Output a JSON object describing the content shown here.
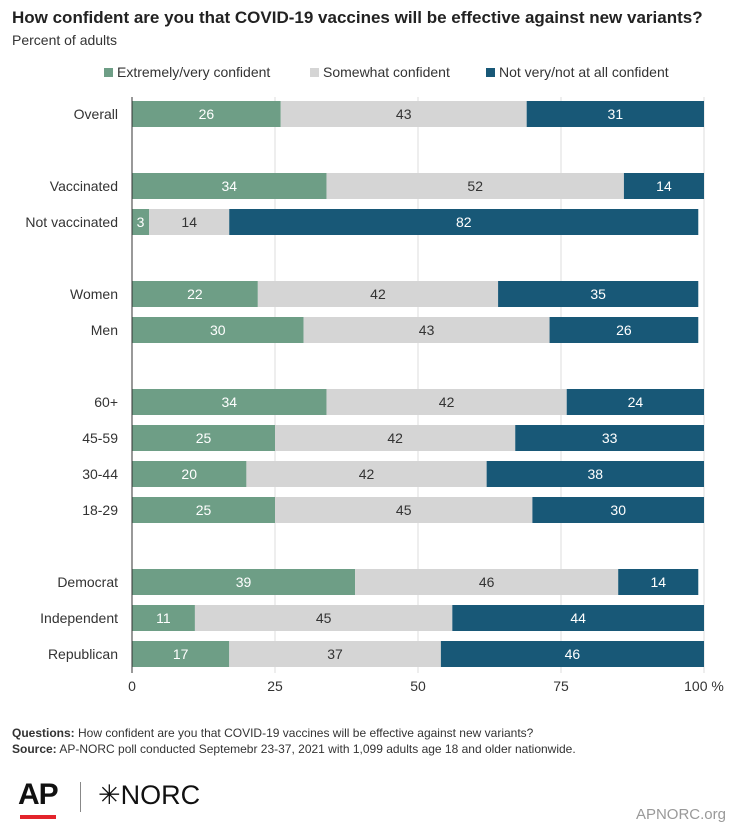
{
  "chart_data": {
    "type": "bar",
    "orientation": "horizontal",
    "stacked": true,
    "title": "How confident are you that COVID-19 vaccines will be effective against new variants?",
    "subtitle": "Percent of adults",
    "categories": [
      "Overall",
      "Vaccinated",
      "Not vaccinated",
      "Women",
      "Men",
      "60+",
      "45-59",
      "30-44",
      "18-29",
      "Democrat",
      "Independent",
      "Republican"
    ],
    "groups": [
      [
        0
      ],
      [
        1,
        2
      ],
      [
        3,
        4
      ],
      [
        5,
        6,
        7,
        8
      ],
      [
        9,
        10,
        11
      ]
    ],
    "series": [
      {
        "name": "Extremely/very confident",
        "color": "#6e9e86",
        "values": [
          26,
          34,
          3,
          22,
          30,
          34,
          25,
          20,
          25,
          39,
          11,
          17
        ]
      },
      {
        "name": "Somewhat confident",
        "color": "#d5d5d5",
        "values": [
          43,
          52,
          14,
          42,
          43,
          42,
          42,
          42,
          45,
          46,
          45,
          37
        ]
      },
      {
        "name": "Not very/not at all confident",
        "color": "#185877",
        "values": [
          31,
          14,
          82,
          35,
          26,
          24,
          33,
          38,
          30,
          14,
          44,
          46
        ]
      }
    ],
    "xlim": [
      0,
      100
    ],
    "xticks": [
      "0",
      "25",
      "50",
      "75",
      "100 %"
    ],
    "xtick_values": [
      0,
      25,
      50,
      75,
      100
    ],
    "grid": true,
    "legend_position": "top"
  },
  "footer": {
    "questions_label": "Questions:",
    "questions_text": " How confident are you that COVID-19 vaccines will be effective against new variants?",
    "source_label": "Source:",
    "source_text": " AP-NORC poll conducted Septemebr 23-37, 2021 with 1,099 adults age 18 and older nationwide."
  },
  "logos": {
    "ap": "AP",
    "norc": "NORC",
    "norc_mark": "✳"
  },
  "site": "APNORC.org"
}
